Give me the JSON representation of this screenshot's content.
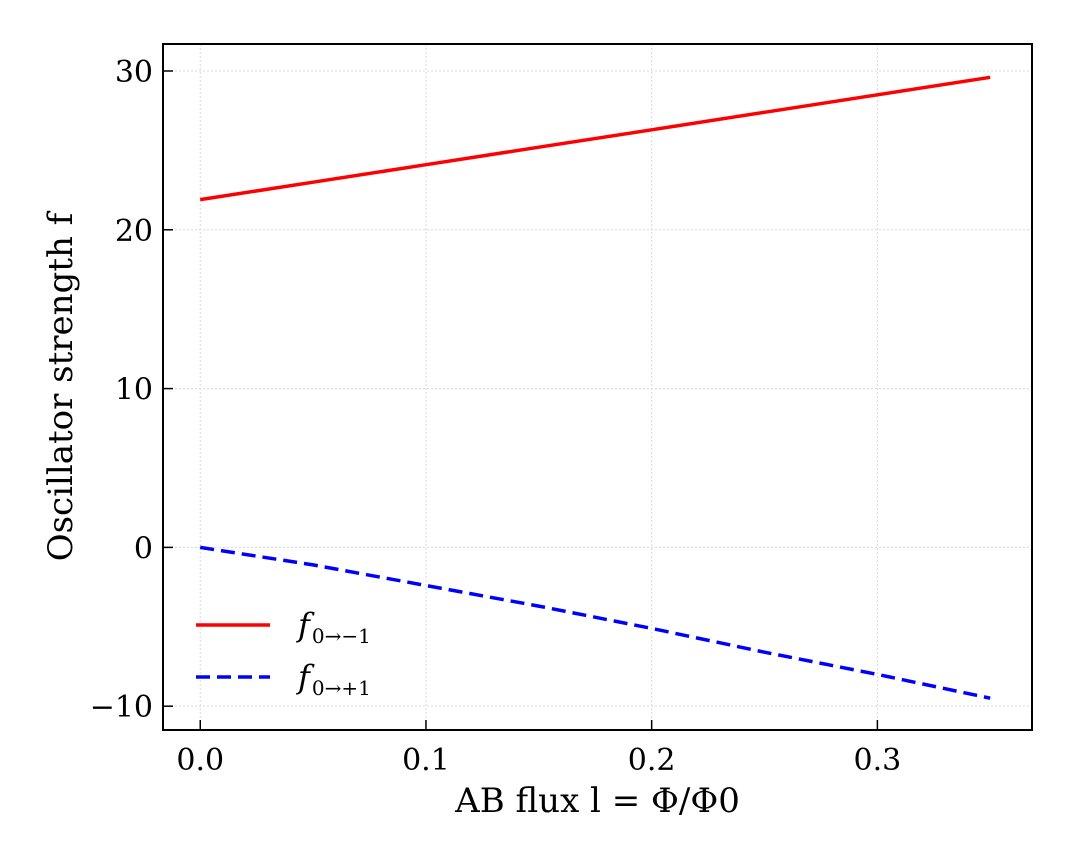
{
  "chart_data": {
    "type": "line",
    "xlabel": "AB flux l = Φ/Φ0",
    "ylabel": "Oscillator strength f",
    "xlim": [
      -0.0165,
      0.3685
    ],
    "ylim": [
      -11.5,
      31.7
    ],
    "xticks": [
      0.0,
      0.1,
      0.2,
      0.3
    ],
    "xtick_labels": [
      "0.0",
      "0.1",
      "0.2",
      "0.3"
    ],
    "yticks": [
      -10,
      0,
      10,
      20,
      30
    ],
    "ytick_labels": [
      "−10",
      "0",
      "10",
      "20",
      "30"
    ],
    "grid": true,
    "legend_position": "lower-left",
    "series": [
      {
        "name": "f0→−1",
        "name_main": "f",
        "name_sub": "0→−1",
        "color": "#ff0000",
        "style": "solid",
        "x": [
          0.0,
          0.05,
          0.1,
          0.15,
          0.2,
          0.25,
          0.3,
          0.35
        ],
        "y": [
          21.9,
          23.0,
          24.1,
          25.2,
          26.3,
          27.4,
          28.5,
          29.6
        ]
      },
      {
        "name": "f0→+1",
        "name_main": "f",
        "name_sub": "0→+1",
        "color": "#0000ff",
        "style": "dashed",
        "x": [
          0.0,
          0.05,
          0.1,
          0.15,
          0.2,
          0.25,
          0.3,
          0.35
        ],
        "y": [
          0.0,
          -1.1,
          -2.4,
          -3.7,
          -5.1,
          -6.6,
          -8.0,
          -9.5
        ]
      }
    ]
  }
}
